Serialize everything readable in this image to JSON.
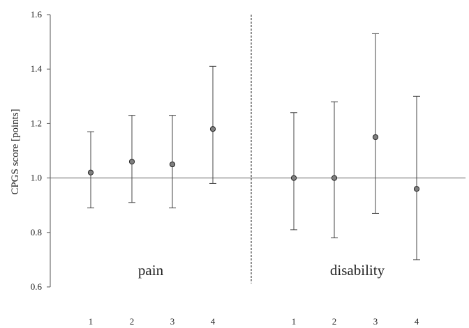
{
  "chart_data": {
    "type": "scatter",
    "ylabel": "CPGS score [points]",
    "ylim": [
      0.6,
      1.6
    ],
    "yticks": [
      "0.6",
      "0.8",
      "1.0",
      "1.2",
      "1.4",
      "1.6"
    ],
    "reference_line": 1.0,
    "point_color": "#7f7f7f",
    "groups": [
      {
        "label": "pain",
        "x": [
          "1",
          "2",
          "3",
          "4"
        ],
        "y": [
          1.02,
          1.06,
          1.05,
          1.18
        ],
        "lower": [
          0.89,
          0.91,
          0.89,
          0.98
        ],
        "upper": [
          1.17,
          1.23,
          1.23,
          1.41
        ]
      },
      {
        "label": "disability",
        "x": [
          "1",
          "2",
          "3",
          "4"
        ],
        "y": [
          1.0,
          1.0,
          1.15,
          0.96
        ],
        "lower": [
          0.81,
          0.78,
          0.87,
          0.7
        ],
        "upper": [
          1.24,
          1.28,
          1.53,
          1.3
        ]
      }
    ]
  }
}
